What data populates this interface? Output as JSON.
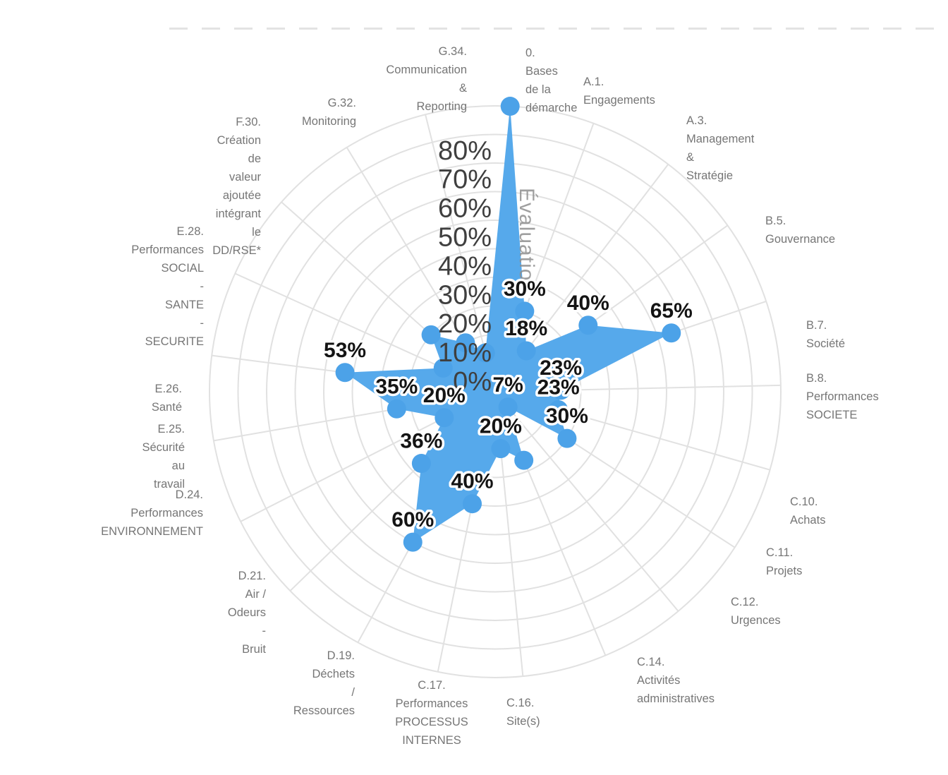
{
  "chart_data": {
    "type": "radar",
    "title": "",
    "fill_color": "#56A9EB",
    "dot_color": "#4CA2E8",
    "grid_color": "#E1E1E1",
    "value_axis": {
      "title": "Évaluation",
      "min": 0,
      "max": 100,
      "ring_step": 10,
      "tick_labels": [
        "0%",
        "10%",
        "20%",
        "30%",
        "40%",
        "50%",
        "60%",
        "70%",
        "80%"
      ]
    },
    "axes": [
      {
        "code": "0.",
        "label_lines": [
          "0.",
          "Bases",
          "de la",
          "démarche"
        ],
        "value": 100,
        "value_label": ""
      },
      {
        "code": "A.1.",
        "label_lines": [
          "A.1.",
          "Engagements"
        ],
        "value": 30,
        "value_label": "30%"
      },
      {
        "code": "A.3.",
        "label_lines": [
          "A.3.",
          "Management",
          "&",
          "Stratégie"
        ],
        "value": 18,
        "value_label": "18%"
      },
      {
        "code": "B.5.",
        "label_lines": [
          "B.5.",
          "Gouvernance"
        ],
        "value": 40,
        "value_label": "40%"
      },
      {
        "code": "B.7.",
        "label_lines": [
          "B.7.",
          "Société"
        ],
        "value": 65,
        "value_label": "65%"
      },
      {
        "code": "B.8.",
        "label_lines": [
          "B.8.",
          "Performances",
          "SOCIETE"
        ],
        "value": 23,
        "value_label": "23%"
      },
      {
        "code": "C.10.",
        "label_lines": [
          "C.10.",
          "Achats"
        ],
        "value": 23,
        "value_label": "23%"
      },
      {
        "code": "C.11.",
        "label_lines": [
          "C.11.",
          "Projets"
        ],
        "value": 30,
        "value_label": "30%"
      },
      {
        "code": "C.12.",
        "label_lines": [
          "C.12.",
          "Urgences"
        ],
        "value": 7,
        "value_label": "7%"
      },
      {
        "code": "C.14.",
        "label_lines": [
          "C.14.",
          "Activités",
          "administratives"
        ],
        "value": 26,
        "value_label": ""
      },
      {
        "code": "C.16.",
        "label_lines": [
          "C.16.",
          "Site(s)"
        ],
        "value": 20,
        "value_label": "20%"
      },
      {
        "code": "C.17.",
        "label_lines": [
          "C.17.",
          "Performances",
          "PROCESSUS",
          "INTERNES"
        ],
        "value": 40,
        "value_label": "40%"
      },
      {
        "code": "D.19.",
        "label_lines": [
          "D.19.",
          "Déchets",
          "/",
          "Ressources"
        ],
        "value": 60,
        "value_label": "60%"
      },
      {
        "code": "D.21.",
        "label_lines": [
          "D.21.",
          "Air /",
          "Odeurs",
          "-",
          "Bruit"
        ],
        "value": 36,
        "value_label": "36%"
      },
      {
        "code": "D.24.",
        "label_lines": [
          "D.24.",
          "Performances",
          "ENVIRONNEMENT"
        ],
        "value": 20,
        "value_label": "20%"
      },
      {
        "code": "E.25.",
        "label_lines": [
          "E.25.",
          "Sécurité",
          "au",
          "travail"
        ],
        "value": 35,
        "value_label": "35%"
      },
      {
        "code": "E.26.",
        "label_lines": [
          "E.26.",
          "Santé"
        ],
        "value": 53,
        "value_label": "53%"
      },
      {
        "code": "E.28.",
        "label_lines": [
          "E.28.",
          "Performances",
          "SOCIAL",
          "-",
          "SANTE",
          "-",
          "SECURITE"
        ],
        "value": 20,
        "value_label": ""
      },
      {
        "code": "F.30.",
        "label_lines": [
          "F.30.",
          "Création",
          "de",
          "valeur",
          "ajoutée",
          "intégrant",
          "le",
          "DD/RSE*"
        ],
        "value": 30,
        "value_label": ""
      },
      {
        "code": "G.32.",
        "label_lines": [
          "G.32.",
          "Monitoring"
        ],
        "value": 20,
        "value_label": ""
      },
      {
        "code": "G.34.",
        "label_lines": [
          "G.34.",
          "Communication",
          "&",
          "Reporting"
        ],
        "value": 14,
        "value_label": ""
      }
    ]
  }
}
